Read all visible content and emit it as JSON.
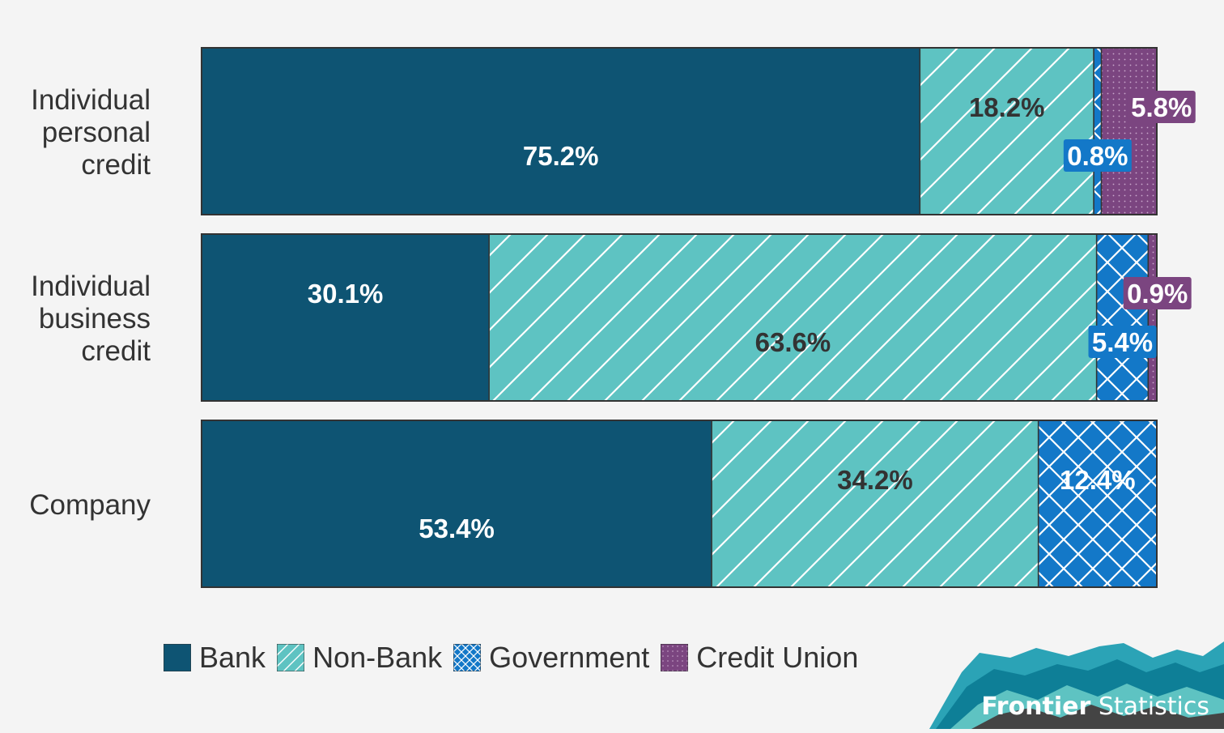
{
  "chart_data": {
    "type": "bar",
    "orientation": "horizontal",
    "stacked": true,
    "categories": [
      "Individual personal credit",
      "Individual business credit",
      "Company"
    ],
    "category_lines": [
      [
        "Individual",
        "personal",
        "credit"
      ],
      [
        "Individual",
        "business",
        "credit"
      ],
      [
        "Company"
      ]
    ],
    "series": [
      {
        "name": "Bank",
        "values": [
          75.2,
          30.1,
          53.4
        ],
        "labels": [
          "75.2%",
          "30.1%",
          "53.4%"
        ]
      },
      {
        "name": "Non-Bank",
        "values": [
          18.2,
          63.6,
          34.2
        ],
        "labels": [
          "18.2%",
          "63.6%",
          "34.2%"
        ]
      },
      {
        "name": "Government",
        "values": [
          0.8,
          5.4,
          12.4
        ],
        "labels": [
          "0.8%",
          "5.4%",
          "12.4%"
        ]
      },
      {
        "name": "Credit Union",
        "values": [
          5.8,
          0.9,
          0
        ],
        "labels": [
          "5.8%",
          "0.9%",
          ""
        ]
      }
    ],
    "xlim": [
      0,
      100
    ],
    "grid": false,
    "legend": "bottom-left"
  },
  "colors": {
    "bank": "#0e5473",
    "non_bank": "#5ec3c2",
    "government": "#1378c8",
    "credit_union": "#7b4580",
    "background": "#f4f4f4"
  },
  "legend": {
    "items": [
      {
        "label": "Bank",
        "pattern": "solid"
      },
      {
        "label": "Non-Bank",
        "pattern": "diagonal"
      },
      {
        "label": "Government",
        "pattern": "crosshatch"
      },
      {
        "label": "Credit Union",
        "pattern": "dots"
      }
    ]
  },
  "brand": {
    "strong": "Frontier",
    "light": "Statistics"
  }
}
